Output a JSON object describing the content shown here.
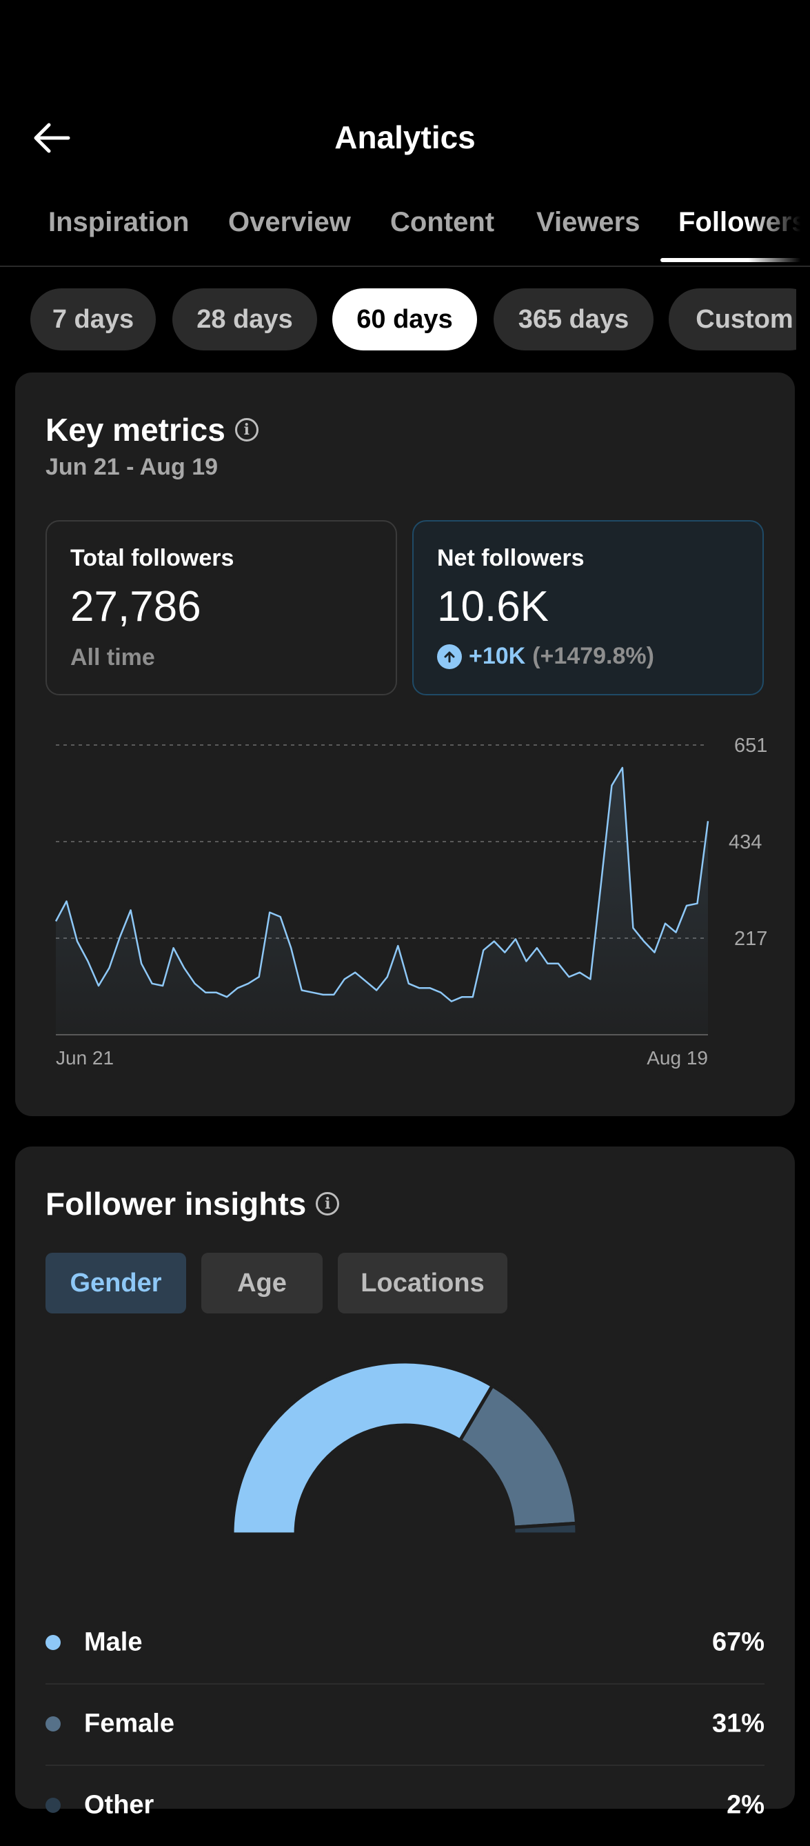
{
  "header": {
    "title": "Analytics",
    "back_icon": "arrow-left-icon"
  },
  "tabs": [
    {
      "label": "Inspiration",
      "active": false
    },
    {
      "label": "Overview",
      "active": false
    },
    {
      "label": "Content",
      "active": false
    },
    {
      "label": "Viewers",
      "active": false
    },
    {
      "label": "Followers",
      "active": true
    }
  ],
  "range_chips": [
    {
      "label": "7 days",
      "active": false
    },
    {
      "label": "28 days",
      "active": false
    },
    {
      "label": "60 days",
      "active": true
    },
    {
      "label": "365 days",
      "active": false
    },
    {
      "label": "Custom",
      "active": false
    }
  ],
  "key_metrics": {
    "title": "Key metrics",
    "date_range": "Jun 21 - Aug 19",
    "total": {
      "label": "Total followers",
      "value": "27,786",
      "sub": "All time"
    },
    "net": {
      "label": "Net followers",
      "value": "10.6K",
      "delta": "+10K",
      "delta_pct": "(+1479.8%)"
    }
  },
  "chart_data": {
    "type": "area",
    "x_start_label": "Jun 21",
    "x_end_label": "Aug 19",
    "y_ticks": [
      217,
      434,
      651
    ],
    "ylim": [
      0,
      651
    ],
    "grid": "dashed horizontal",
    "color": "#8ec8f7",
    "values": [
      255,
      300,
      210,
      165,
      110,
      150,
      220,
      280,
      160,
      115,
      110,
      195,
      150,
      115,
      95,
      95,
      85,
      105,
      115,
      130,
      275,
      265,
      195,
      100,
      95,
      90,
      90,
      125,
      140,
      120,
      100,
      130,
      200,
      115,
      105,
      105,
      95,
      75,
      85,
      85,
      190,
      210,
      185,
      215,
      165,
      195,
      160,
      160,
      130,
      140,
      125,
      340,
      560,
      600,
      240,
      210,
      185,
      250,
      230,
      290,
      295,
      480
    ]
  },
  "follower_insights": {
    "title": "Follower insights",
    "tabs": [
      {
        "label": "Gender",
        "active": true
      },
      {
        "label": "Age",
        "active": false
      },
      {
        "label": "Locations",
        "active": false
      }
    ],
    "gender": [
      {
        "label": "Male",
        "value": "67%",
        "share": 67,
        "color": "#8ec8f7"
      },
      {
        "label": "Female",
        "value": "31%",
        "share": 31,
        "color": "#567189"
      },
      {
        "label": "Other",
        "value": "2%",
        "share": 2,
        "color": "#2b3d4d"
      }
    ]
  }
}
